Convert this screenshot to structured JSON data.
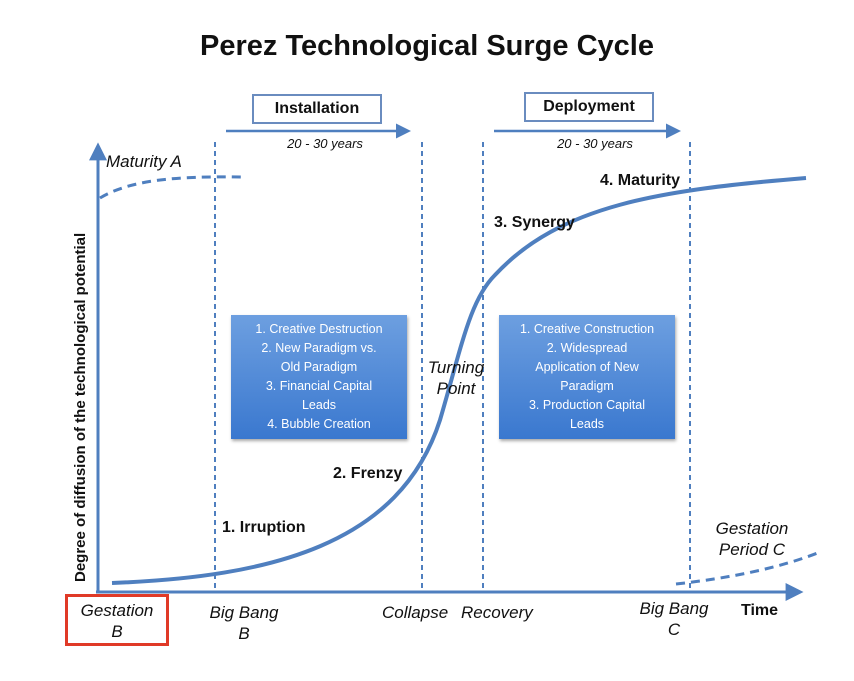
{
  "title": "Perez Technological Surge Cycle",
  "y_axis_label": "Degree of diffusion of the technological potential",
  "x_axis_label": "Time",
  "phases": [
    {
      "label": "Installation",
      "duration": "20 - 30 years"
    },
    {
      "label": "Deployment",
      "duration": "20 - 30 years"
    }
  ],
  "curve_labels": {
    "irruption": "1. Irruption",
    "frenzy": "2. Frenzy",
    "synergy": "3. Synergy",
    "maturity": "4. Maturity",
    "turning_point": [
      "Turning",
      "Point"
    ],
    "maturity_a": "Maturity A",
    "gestation_period_c": [
      "Gestation",
      "Period C"
    ]
  },
  "x_labels": {
    "gestation_b": [
      "Gestation",
      "B"
    ],
    "big_bang_b": [
      "Big Bang",
      "B"
    ],
    "collapse": "Collapse",
    "recovery": "Recovery",
    "big_bang_c": [
      "Big Bang",
      "C"
    ]
  },
  "installation_box": [
    "1. Creative Destruction",
    "2. New Paradigm vs.",
    "Old Paradigm",
    "3. Financial Capital",
    "Leads",
    "4. Bubble Creation"
  ],
  "deployment_box": [
    "1. Creative Construction",
    "2. Widespread",
    "Application of New",
    "Paradigm",
    "3. Production Capital",
    "Leads"
  ],
  "colors": {
    "line": "#4f7fbf",
    "box": "#4a86d6",
    "highlight": "#e03a27"
  }
}
